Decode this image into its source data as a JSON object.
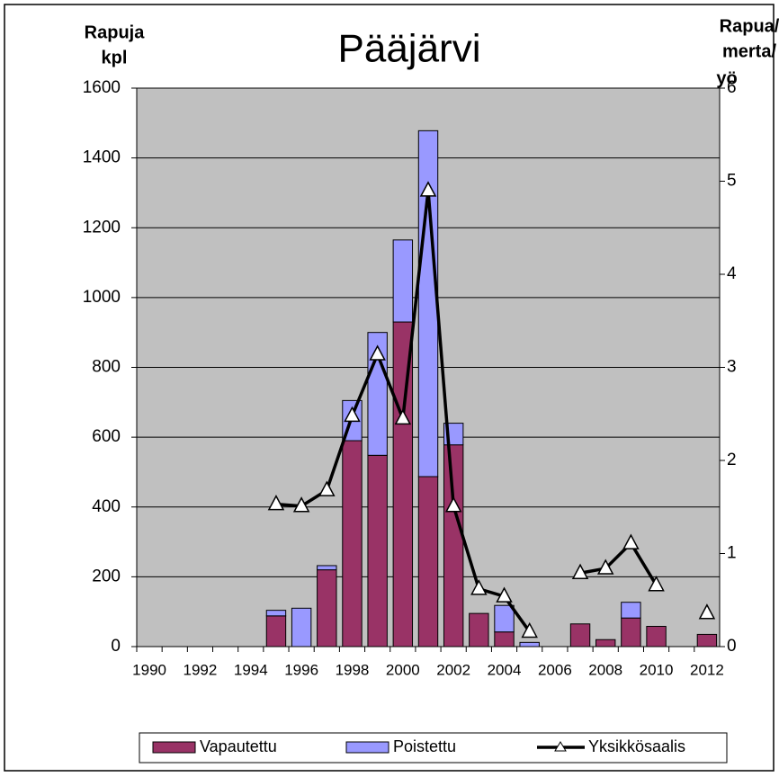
{
  "chart_data": {
    "type": "bar",
    "stacked": true,
    "title": "Pääjärvi",
    "ylabel": [
      "Rapuja",
      "kpl"
    ],
    "y2label": [
      "Rapua/",
      "merta/",
      "yö"
    ],
    "categories": [
      "1990",
      null,
      "1992",
      null,
      "1994",
      null,
      "1996",
      null,
      "1998",
      null,
      "2000",
      null,
      "2002",
      null,
      "2004",
      null,
      "2006",
      null,
      "2008",
      null,
      "2010",
      null,
      "2012"
    ],
    "series": [
      {
        "name": "Vapautettu",
        "color": "#993366",
        "type": "bar",
        "values": [
          null,
          null,
          null,
          null,
          null,
          88,
          0,
          220,
          590,
          548,
          930,
          487,
          578,
          95,
          42,
          0,
          null,
          65,
          20,
          82,
          58,
          null,
          35
        ]
      },
      {
        "name": "Poistettu",
        "color": "#9999ff",
        "type": "bar",
        "values": [
          null,
          null,
          null,
          null,
          null,
          16,
          110,
          12,
          115,
          352,
          235,
          991,
          62,
          0,
          76,
          12,
          null,
          0,
          0,
          45,
          0,
          null,
          0
        ]
      },
      {
        "name": "Yksikkösaalis",
        "color": "#000000",
        "type": "line",
        "axis": "y2",
        "values": [
          null,
          null,
          null,
          null,
          null,
          1.53,
          1.51,
          1.68,
          2.48,
          3.14,
          2.45,
          4.9,
          1.51,
          0.62,
          0.54,
          0.16,
          null,
          0.79,
          0.84,
          1.11,
          0.66,
          null,
          0.36
        ]
      }
    ],
    "ylim": [
      0,
      1600
    ],
    "yticks": [
      0,
      200,
      400,
      600,
      800,
      1000,
      1200,
      1400,
      1600
    ],
    "y2lim": [
      0,
      6
    ],
    "y2ticks": [
      0,
      1,
      2,
      3,
      4,
      5,
      6
    ],
    "grid": true,
    "legend": "bottom"
  }
}
